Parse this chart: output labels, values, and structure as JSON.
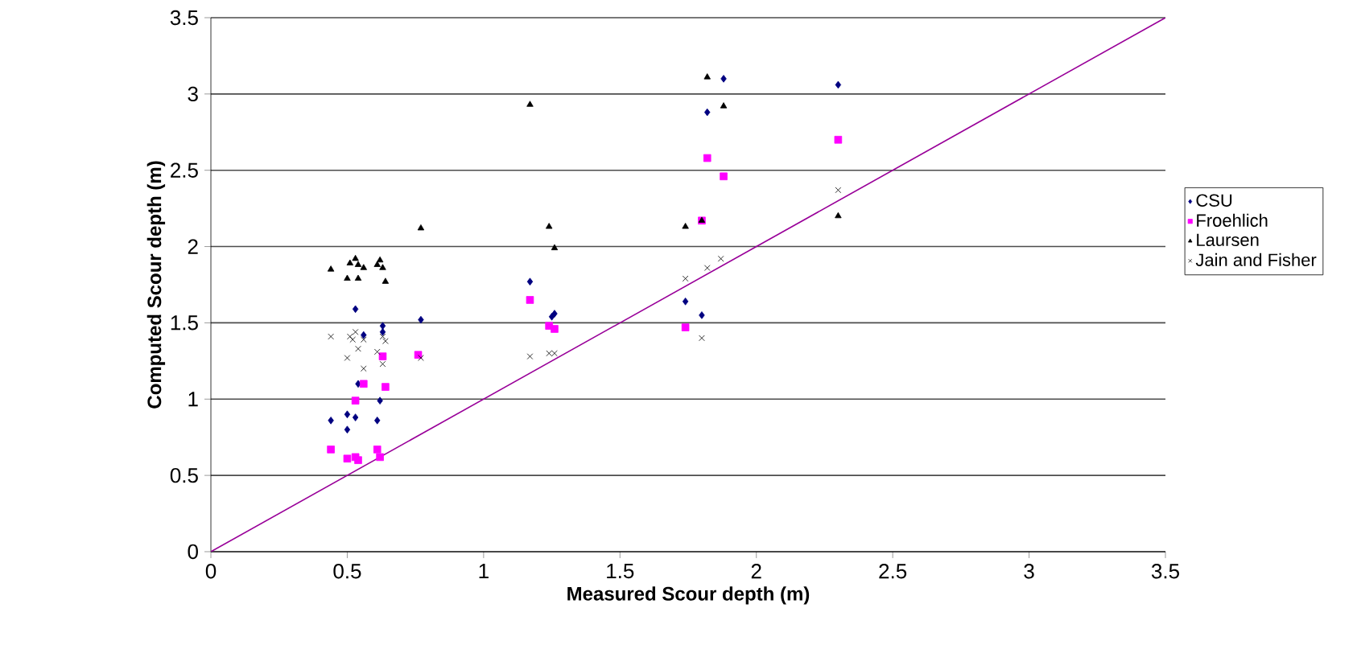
{
  "chart_data": {
    "type": "scatter",
    "xlabel": "Measured Scour depth (m)",
    "ylabel": "Computed Scour depth (m)",
    "xlim": [
      0,
      3.5
    ],
    "ylim": [
      0,
      3.5
    ],
    "xticks": [
      0,
      0.5,
      1,
      1.5,
      2,
      2.5,
      3,
      3.5
    ],
    "yticks": [
      0,
      0.5,
      1,
      1.5,
      2,
      2.5,
      3,
      3.5
    ],
    "grid": "y",
    "legend": "right",
    "series": [
      {
        "name": "CSU",
        "color": "#000080",
        "marker": "diamond",
        "x": [
          0.53,
          0.77,
          0.63,
          0.56,
          0.63,
          0.54,
          0.62,
          0.44,
          0.5,
          0.53,
          0.5,
          0.61,
          1.17,
          1.25,
          1.26,
          1.74,
          1.8,
          1.88,
          1.82,
          2.3
        ],
        "values": [
          1.59,
          1.52,
          1.48,
          1.42,
          1.44,
          1.1,
          0.99,
          0.86,
          0.9,
          0.88,
          0.8,
          0.86,
          1.77,
          1.54,
          1.56,
          1.64,
          1.55,
          3.1,
          2.88,
          3.06
        ]
      },
      {
        "name": "Froehlich",
        "color": "#ff00ff",
        "marker": "square",
        "x": [
          0.76,
          0.63,
          0.56,
          0.64,
          0.53,
          0.44,
          0.5,
          0.53,
          0.54,
          0.61,
          0.62,
          1.17,
          1.24,
          1.26,
          1.74,
          1.82,
          1.88,
          2.3,
          1.8
        ],
        "values": [
          1.29,
          1.28,
          1.1,
          1.08,
          0.99,
          0.67,
          0.61,
          0.62,
          0.6,
          0.67,
          0.62,
          1.65,
          1.48,
          1.46,
          1.47,
          2.58,
          2.46,
          2.7,
          2.17
        ]
      },
      {
        "name": "Laursen",
        "color": "#000000",
        "marker": "triangle",
        "x": [
          0.44,
          0.5,
          0.53,
          0.54,
          0.51,
          0.56,
          0.54,
          0.62,
          0.63,
          0.64,
          0.61,
          0.77,
          1.17,
          1.24,
          1.26,
          1.82,
          1.88,
          2.3,
          1.74,
          1.8
        ],
        "values": [
          1.85,
          1.79,
          1.92,
          1.88,
          1.89,
          1.86,
          1.79,
          1.91,
          1.86,
          1.77,
          1.88,
          2.12,
          2.93,
          2.13,
          1.99,
          3.11,
          2.92,
          2.2,
          2.13,
          2.17
        ]
      },
      {
        "name": "Jain and Fisher",
        "color": "#000000",
        "marker": "cross",
        "x": [
          0.44,
          0.51,
          0.53,
          0.54,
          0.56,
          0.61,
          0.63,
          0.64,
          0.5,
          0.56,
          0.63,
          0.77,
          0.52,
          1.17,
          1.24,
          1.26,
          1.8,
          1.74,
          1.82,
          1.87,
          2.3
        ],
        "values": [
          1.41,
          1.41,
          1.44,
          1.33,
          1.39,
          1.31,
          1.41,
          1.38,
          1.27,
          1.2,
          1.23,
          1.27,
          1.39,
          1.28,
          1.3,
          1.3,
          1.4,
          1.79,
          1.86,
          1.92,
          2.37
        ]
      },
      {
        "type": "line",
        "color": "#990099",
        "marker": "none",
        "x": [
          0,
          3.5
        ],
        "values": [
          0,
          3.5
        ]
      }
    ]
  }
}
